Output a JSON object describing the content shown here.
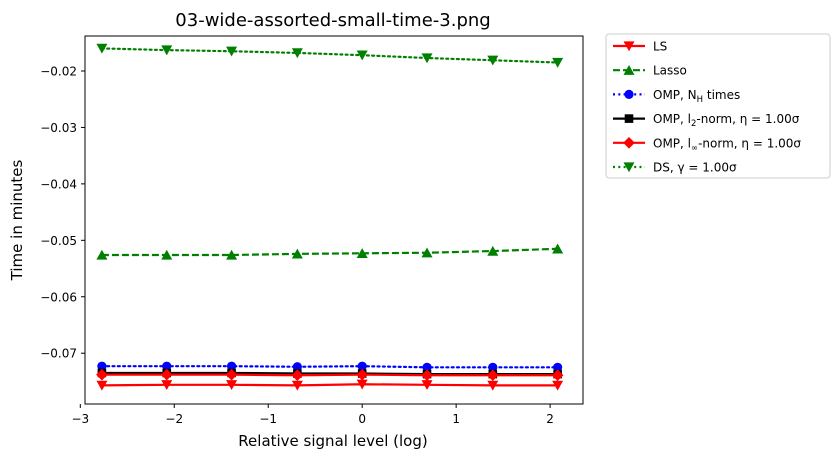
{
  "chart_data": {
    "type": "line",
    "title": "03-wide-assorted-small-time-3.png",
    "xlabel": "Relative signal level (log)",
    "ylabel": "Time in minutes",
    "xlim": [
      -2.95,
      2.35
    ],
    "ylim": [
      -0.079,
      -0.0138
    ],
    "xticks": [
      -3,
      -2,
      -1,
      0,
      1,
      2
    ],
    "xtick_labels": [
      "−3",
      "−2",
      "−1",
      "0",
      "1",
      "2"
    ],
    "yticks": [
      -0.02,
      -0.03,
      -0.04,
      -0.05,
      -0.06,
      -0.07
    ],
    "ytick_labels": [
      "−0.02",
      "−0.03",
      "−0.04",
      "−0.05",
      "−0.06",
      "−0.07"
    ],
    "grid": false,
    "legend_position": "outside right, top",
    "x": [
      -2.77,
      -2.08,
      -1.39,
      -0.69,
      0.0,
      0.69,
      1.39,
      2.08
    ],
    "series": [
      {
        "name": "LS",
        "legend_main": "LS",
        "legend_suffix": "",
        "color": "#ff0000",
        "dash": "solid",
        "marker": "triangle-down",
        "values": [
          -0.0757,
          -0.0756,
          -0.0756,
          -0.0757,
          -0.0755,
          -0.0756,
          -0.0757,
          -0.0757
        ]
      },
      {
        "name": "Lasso",
        "legend_main": "Lasso",
        "legend_suffix": "",
        "color": "#008000",
        "dash": "dashed",
        "marker": "triangle-up",
        "values": [
          -0.0526,
          -0.0526,
          -0.0526,
          -0.0524,
          -0.0523,
          -0.0522,
          -0.0519,
          -0.0515
        ]
      },
      {
        "name": "OMP, N_H times",
        "legend_main": "OMP, N",
        "legend_sub": "H",
        "legend_suffix": " times",
        "color": "#0000ff",
        "dash": "dotted",
        "marker": "circle",
        "values": [
          -0.0723,
          -0.0723,
          -0.0723,
          -0.0724,
          -0.0723,
          -0.0725,
          -0.0725,
          -0.0725
        ]
      },
      {
        "name": "OMP, l2-norm, η = 1.00σ",
        "legend_main": "OMP, l",
        "legend_sub": "2",
        "legend_suffix": "-norm, η = 1.00σ",
        "color": "#000000",
        "dash": "solid",
        "marker": "square",
        "values": [
          -0.0735,
          -0.0735,
          -0.0735,
          -0.0736,
          -0.0736,
          -0.0737,
          -0.0737,
          -0.0737
        ]
      },
      {
        "name": "OMP, l∞-norm, η = 1.00σ",
        "legend_main": "OMP, l",
        "legend_sub": "∞",
        "legend_suffix": "-norm, η = 1.00σ",
        "color": "#ff0000",
        "dash": "solid",
        "marker": "diamond",
        "values": [
          -0.0738,
          -0.0738,
          -0.0738,
          -0.0739,
          -0.0738,
          -0.0739,
          -0.0739,
          -0.0739
        ]
      },
      {
        "name": "DS, γ = 1.00σ",
        "legend_main": "DS, γ = 1.00σ",
        "legend_suffix": "",
        "color": "#008000",
        "dash": "dotted",
        "marker": "triangle-down",
        "values": [
          -0.016,
          -0.0163,
          -0.0165,
          -0.0168,
          -0.0172,
          -0.0177,
          -0.0181,
          -0.0185
        ]
      }
    ]
  }
}
